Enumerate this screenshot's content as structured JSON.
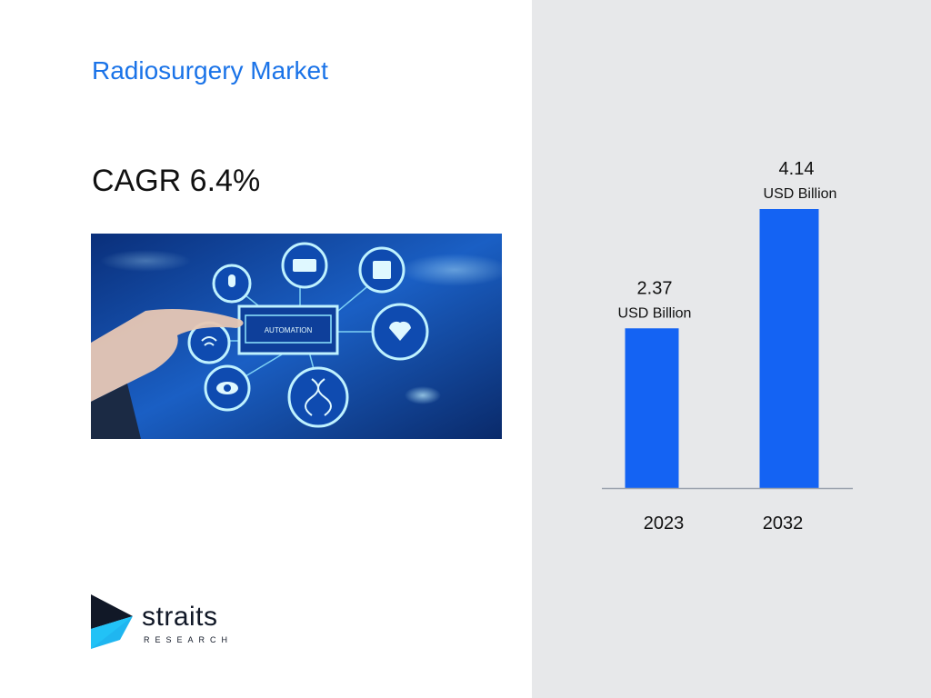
{
  "slide": {
    "title": "Radiosurgery Market",
    "cagr": "CAGR 6.4%",
    "image_label": "AUTOMATION"
  },
  "logo": {
    "name": "straits",
    "subtitle": "RESEARCH"
  },
  "colors": {
    "title": "#1a73e8",
    "bar": "#1463f3",
    "panel": "#e7e8ea"
  },
  "chart_data": {
    "type": "bar",
    "categories": [
      "2023",
      "2032"
    ],
    "values": [
      2.37,
      4.14
    ],
    "value_labels": [
      "2.37",
      "4.14"
    ],
    "unit_label": "USD Billion",
    "ylim": [
      0,
      4.14
    ],
    "grid": false
  }
}
